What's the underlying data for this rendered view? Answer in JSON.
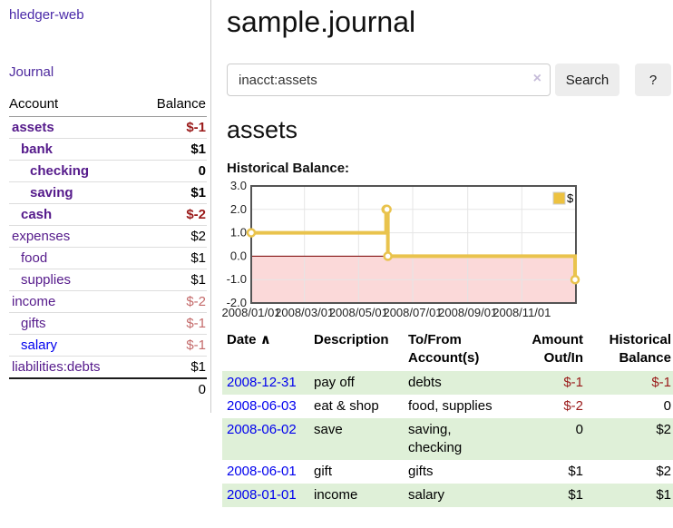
{
  "colors": {
    "link_purple": "#551A8B",
    "link_blue": "#0000EE",
    "negative_strong": "#9A1A1A",
    "negative_soft": "#C46A6A",
    "row_shade_green": "#DFF0D8",
    "button_bg": "#EDEDED",
    "chart_line_gold": "#E9C34D",
    "chart_legend_gold": "#EDC240",
    "chart_negative_pink": "#FBD9D9",
    "chart_zero_line": "#7D0000"
  },
  "app": {
    "title": "hledger-web",
    "nav_journal": "Journal"
  },
  "sidebar": {
    "headers": {
      "account": "Account",
      "balance": "Balance"
    },
    "accounts": [
      {
        "name": "assets",
        "indent": 0,
        "bold": true,
        "balance": "$-1",
        "balance_style": "neg-strong"
      },
      {
        "name": "bank",
        "indent": 1,
        "bold": true,
        "balance": "$1",
        "balance_style": "pos"
      },
      {
        "name": "checking",
        "indent": 2,
        "bold": true,
        "balance": "0",
        "balance_style": "pos"
      },
      {
        "name": "saving",
        "indent": 2,
        "bold": true,
        "balance": "$1",
        "balance_style": "pos"
      },
      {
        "name": "cash",
        "indent": 1,
        "bold": true,
        "balance": "$-2",
        "balance_style": "neg-strong"
      },
      {
        "name": "expenses",
        "indent": 0,
        "bold": false,
        "balance": "$2",
        "balance_style": "pos"
      },
      {
        "name": "food",
        "indent": 1,
        "bold": false,
        "balance": "$1",
        "balance_style": "pos"
      },
      {
        "name": "supplies",
        "indent": 1,
        "bold": false,
        "balance": "$1",
        "balance_style": "pos"
      },
      {
        "name": "income",
        "indent": 0,
        "bold": false,
        "balance": "$-2",
        "balance_style": "neg-soft"
      },
      {
        "name": "gifts",
        "indent": 1,
        "bold": false,
        "balance": "$-1",
        "balance_style": "neg-soft"
      },
      {
        "name": "salary",
        "indent": 1,
        "bold": false,
        "link_color": "blue",
        "balance": "$-1",
        "balance_style": "neg-soft"
      },
      {
        "name": "liabilities:debts",
        "indent": 0,
        "bold": false,
        "balance": "$1",
        "balance_style": "pos"
      }
    ],
    "total": "0"
  },
  "header": {
    "title": "sample.journal"
  },
  "search": {
    "value": "inacct:assets",
    "clear_icon": "×",
    "button_label": "Search",
    "help_label": "?"
  },
  "account_page": {
    "title": "assets",
    "chart_label": "Historical Balance:"
  },
  "chart_data": {
    "type": "line",
    "step": "after",
    "legend_label": "$",
    "ylim": [
      -2,
      3
    ],
    "x_start": "2008-01-01",
    "x_end": "2009-01-01",
    "y_ticks": [
      {
        "value": 3,
        "label": "3.0"
      },
      {
        "value": 2,
        "label": "2.0"
      },
      {
        "value": 1,
        "label": "1.0"
      },
      {
        "value": 0,
        "label": "0.0"
      },
      {
        "value": -1,
        "label": "-1.0"
      },
      {
        "value": -2,
        "label": "-2.0"
      }
    ],
    "x_ticks": [
      {
        "date": "2008-01-01",
        "label": "2008/01/01"
      },
      {
        "date": "2008-03-01",
        "label": "2008/03/01"
      },
      {
        "date": "2008-05-01",
        "label": "2008/05/01"
      },
      {
        "date": "2008-07-01",
        "label": "2008/07/01"
      },
      {
        "date": "2008-09-01",
        "label": "2008/09/01"
      },
      {
        "date": "2008-11-01",
        "label": "2008/11/01"
      }
    ],
    "points": [
      {
        "x": "2008-01-01",
        "y": 1
      },
      {
        "x": "2008-06-01",
        "y": 2
      },
      {
        "x": "2008-06-02",
        "y": 2
      },
      {
        "x": "2008-06-03",
        "y": 0
      },
      {
        "x": "2008-12-31",
        "y": -1
      }
    ],
    "colors": {
      "line": "#E9C34D",
      "legend_fill": "#EDC240",
      "negative_fill": "#FBD9D9",
      "zero_line": "#7D0000",
      "grid": "#E5E5E5",
      "border": "#545454"
    }
  },
  "register": {
    "headers": {
      "date": "Date",
      "date_sort_icon": "∧",
      "description": "Description",
      "account_line1": "To/From",
      "account_line2": "Account(s)",
      "amount_line1": "Amount",
      "amount_line2": "Out/In",
      "balance_line1": "Historical",
      "balance_line2": "Balance"
    },
    "rows": [
      {
        "date": "2008-12-31",
        "description": "pay off",
        "accounts": "debts",
        "amount": "$-1",
        "amount_neg": true,
        "balance": "$-1",
        "balance_neg": true,
        "shade": true
      },
      {
        "date": "2008-06-03",
        "description": "eat & shop",
        "accounts": "food, supplies",
        "amount": "$-2",
        "amount_neg": true,
        "balance": "0",
        "balance_neg": false,
        "shade": false
      },
      {
        "date": "2008-06-02",
        "description": "save",
        "accounts": "saving, checking",
        "amount": "0",
        "amount_neg": false,
        "balance": "$2",
        "balance_neg": false,
        "shade": true
      },
      {
        "date": "2008-06-01",
        "description": "gift",
        "accounts": "gifts",
        "amount": "$1",
        "amount_neg": false,
        "balance": "$2",
        "balance_neg": false,
        "shade": false
      },
      {
        "date": "2008-01-01",
        "description": "income",
        "accounts": "salary",
        "amount": "$1",
        "amount_neg": false,
        "balance": "$1",
        "balance_neg": false,
        "shade": true
      }
    ]
  }
}
